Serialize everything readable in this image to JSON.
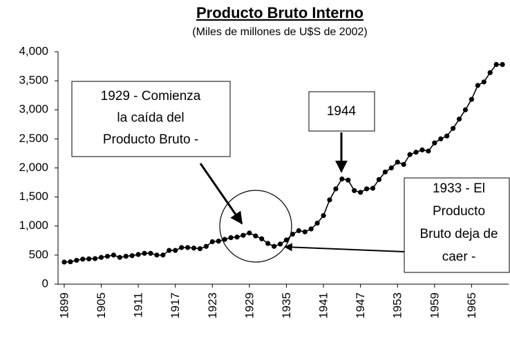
{
  "chart_data": {
    "type": "line",
    "title": "Producto Bruto Interno",
    "subtitle": "(Miles de millones de U$S de 2002)",
    "x": [
      1899,
      1900,
      1901,
      1902,
      1903,
      1904,
      1905,
      1906,
      1907,
      1908,
      1909,
      1910,
      1911,
      1912,
      1913,
      1914,
      1915,
      1916,
      1917,
      1918,
      1919,
      1920,
      1921,
      1922,
      1923,
      1924,
      1925,
      1926,
      1927,
      1928,
      1929,
      1930,
      1931,
      1932,
      1933,
      1934,
      1935,
      1936,
      1937,
      1938,
      1939,
      1940,
      1941,
      1942,
      1943,
      1944,
      1945,
      1946,
      1947,
      1948,
      1949,
      1950,
      1951,
      1952,
      1953,
      1954,
      1955,
      1956,
      1957,
      1958,
      1959,
      1960,
      1961,
      1962,
      1963,
      1964,
      1965,
      1966,
      1967,
      1968,
      1969,
      1970
    ],
    "series": [
      {
        "name": "Producto Bruto Interno",
        "color": "#000000",
        "values": [
          380,
          385,
          410,
          430,
          435,
          440,
          460,
          480,
          500,
          460,
          480,
          490,
          510,
          530,
          530,
          500,
          500,
          580,
          580,
          630,
          630,
          620,
          610,
          650,
          730,
          740,
          770,
          800,
          810,
          840,
          880,
          830,
          780,
          700,
          650,
          690,
          760,
          860,
          920,
          900,
          950,
          1050,
          1180,
          1450,
          1640,
          1810,
          1790,
          1610,
          1580,
          1640,
          1650,
          1800,
          1930,
          2000,
          2100,
          2060,
          2230,
          2270,
          2310,
          2290,
          2430,
          2500,
          2550,
          2680,
          2840,
          3000,
          3180,
          3420,
          3480,
          3640,
          3780,
          3780
        ]
      }
    ],
    "xlim": [
      1898,
      1971
    ],
    "xticks": [
      1899,
      1905,
      1911,
      1917,
      1923,
      1929,
      1935,
      1941,
      1947,
      1953,
      1959,
      1965
    ],
    "ylim": [
      0,
      4000
    ],
    "yticks": [
      0,
      500,
      {
        "value": 1000,
        "label": "1,000"
      },
      {
        "value": 1500,
        "label": "1,500"
      },
      {
        "value": 2000,
        "label": "2,000"
      },
      {
        "value": 2500,
        "label": "2,500"
      },
      {
        "value": 3000,
        "label": "3,000"
      },
      {
        "value": 3500,
        "label": "3,500"
      },
      {
        "value": 4000,
        "label": "4,000"
      }
    ],
    "grid": false,
    "annotations": [
      {
        "lines": [
          "1929 - Comienza",
          "la caída del",
          "Producto Bruto -"
        ]
      },
      {
        "lines": [
          "1944"
        ]
      },
      {
        "lines": [
          "1933 - El",
          "Producto",
          "Bruto  deja de",
          "caer -"
        ]
      }
    ]
  }
}
